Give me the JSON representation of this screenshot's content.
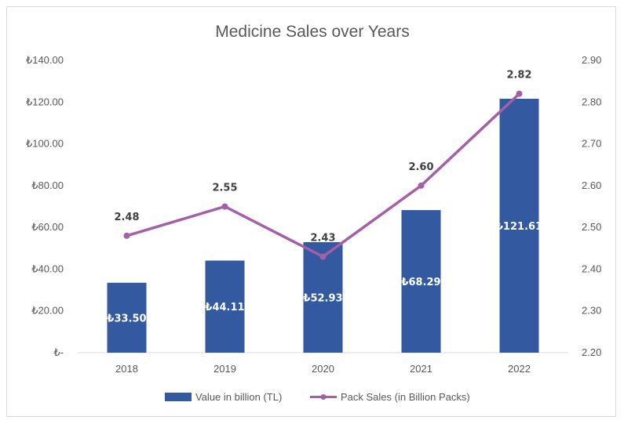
{
  "chart_data": {
    "type": "bar",
    "title": "Medicine Sales over Years",
    "categories": [
      "2018",
      "2019",
      "2020",
      "2021",
      "2022"
    ],
    "series": [
      {
        "name": "Value in billion (TL)",
        "type": "bar",
        "axis": "left",
        "values": [
          33.5,
          44.11,
          52.93,
          68.29,
          121.61
        ],
        "labels": [
          "₺33.50",
          "₺44.11",
          "₺52.93",
          "₺68.29",
          "₺121.61"
        ],
        "color": "#335aa0"
      },
      {
        "name": "Pack Sales (in Billion Packs)",
        "type": "line",
        "axis": "right",
        "values": [
          2.48,
          2.55,
          2.43,
          2.6,
          2.82
        ],
        "labels": [
          "2.48",
          "2.55",
          "2.43",
          "2.60",
          "2.82"
        ],
        "color": "#a55fa9"
      }
    ],
    "y_left": {
      "min": 0,
      "max": 140,
      "ticks": [
        0,
        20,
        40,
        60,
        80,
        100,
        120,
        140
      ],
      "tick_labels": [
        "₺-",
        "₺20.00",
        "₺40.00",
        "₺60.00",
        "₺80.00",
        "₺100.00",
        "₺120.00",
        "₺140.00"
      ]
    },
    "y_right": {
      "min": 2.2,
      "max": 2.9,
      "ticks": [
        2.2,
        2.3,
        2.4,
        2.5,
        2.6,
        2.7,
        2.8,
        2.9
      ],
      "tick_labels": [
        "2.20",
        "2.30",
        "2.40",
        "2.50",
        "2.60",
        "2.70",
        "2.80",
        "2.90"
      ]
    },
    "grid": false,
    "legend": "bottom"
  }
}
